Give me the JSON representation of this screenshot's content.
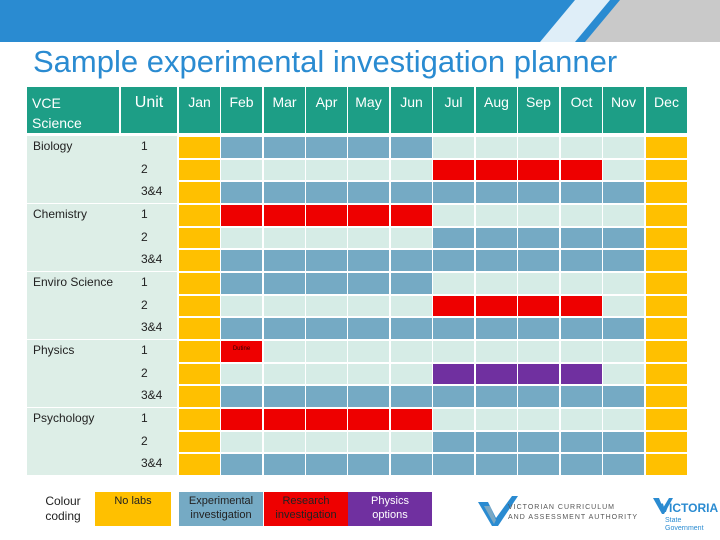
{
  "title": "Sample experimental  investigation planner",
  "header": {
    "subject_label": "VCE Science",
    "unit_label": "Unit",
    "months": [
      "Jan",
      "Feb",
      "Mar",
      "Apr",
      "May",
      "Jun",
      "Jul",
      "Aug",
      "Sep",
      "Oct",
      "Nov",
      "Dec"
    ]
  },
  "colors": {
    "orange": "#ffc000",
    "blue": "#75aac4",
    "light": "#d6ece6",
    "red": "#ee0000",
    "purple": "#7030a0",
    "header": "#1d9e86"
  },
  "subjects": [
    {
      "name": "Biology",
      "units": [
        "1",
        "2",
        "3&4"
      ]
    },
    {
      "name": "Chemistry",
      "units": [
        "1",
        "2",
        "3&4"
      ]
    },
    {
      "name": "Enviro Science",
      "units": [
        "1",
        "2",
        "3&4"
      ]
    },
    {
      "name": "Physics",
      "units": [
        "1",
        "2",
        "3&4"
      ]
    },
    {
      "name": "Psychology",
      "units": [
        "1",
        "2",
        "3&4"
      ]
    }
  ],
  "grid": [
    [
      "O",
      "B",
      "B",
      "B",
      "B",
      "B",
      "L",
      "L",
      "L",
      "L",
      "L",
      "O"
    ],
    [
      "O",
      "L",
      "L",
      "L",
      "L",
      "L",
      "R",
      "R",
      "R",
      "R",
      "L",
      "O"
    ],
    [
      "O",
      "B",
      "B",
      "B",
      "B",
      "B",
      "B",
      "B",
      "B",
      "B",
      "B",
      "O"
    ],
    [
      "O",
      "R",
      "R",
      "R",
      "R",
      "R",
      "L",
      "L",
      "L",
      "L",
      "L",
      "O"
    ],
    [
      "O",
      "L",
      "L",
      "L",
      "L",
      "L",
      "B",
      "B",
      "B",
      "B",
      "B",
      "O"
    ],
    [
      "O",
      "B",
      "B",
      "B",
      "B",
      "B",
      "B",
      "B",
      "B",
      "B",
      "B",
      "O"
    ],
    [
      "O",
      "B",
      "B",
      "B",
      "B",
      "B",
      "L",
      "L",
      "L",
      "L",
      "L",
      "O"
    ],
    [
      "O",
      "L",
      "L",
      "L",
      "L",
      "L",
      "R",
      "R",
      "R",
      "R",
      "L",
      "O"
    ],
    [
      "O",
      "B",
      "B",
      "B",
      "B",
      "B",
      "B",
      "B",
      "B",
      "B",
      "B",
      "O"
    ],
    [
      "O",
      "R",
      "L",
      "L",
      "L",
      "L",
      "L",
      "L",
      "L",
      "L",
      "L",
      "O"
    ],
    [
      "O",
      "L",
      "L",
      "L",
      "L",
      "L",
      "P",
      "P",
      "P",
      "P",
      "L",
      "O"
    ],
    [
      "O",
      "B",
      "B",
      "B",
      "B",
      "B",
      "B",
      "B",
      "B",
      "B",
      "B",
      "O"
    ],
    [
      "O",
      "R",
      "R",
      "R",
      "R",
      "R",
      "L",
      "L",
      "L",
      "L",
      "L",
      "O"
    ],
    [
      "O",
      "L",
      "L",
      "L",
      "L",
      "L",
      "B",
      "B",
      "B",
      "B",
      "B",
      "O"
    ],
    [
      "O",
      "B",
      "B",
      "B",
      "B",
      "B",
      "B",
      "B",
      "B",
      "B",
      "B",
      "O"
    ]
  ],
  "physics_note": "Dutine",
  "legend": {
    "title": "Colour coding",
    "items": [
      {
        "label": "No labs",
        "color": "#ffc000"
      },
      {
        "label": "Experimental investigation",
        "color": "#75aac4"
      },
      {
        "label": "Research investigation",
        "color": "#ee0000"
      },
      {
        "label": "Physics options",
        "color": "#7030a0"
      }
    ]
  },
  "logos": {
    "vcaa_line1": "VICTORIAN CURRICULUM",
    "vcaa_line2": "AND ASSESSMENT AUTHORITY",
    "victoria_main": "VICTORIA",
    "victoria_sub1": "State",
    "victoria_sub2": "Government"
  }
}
